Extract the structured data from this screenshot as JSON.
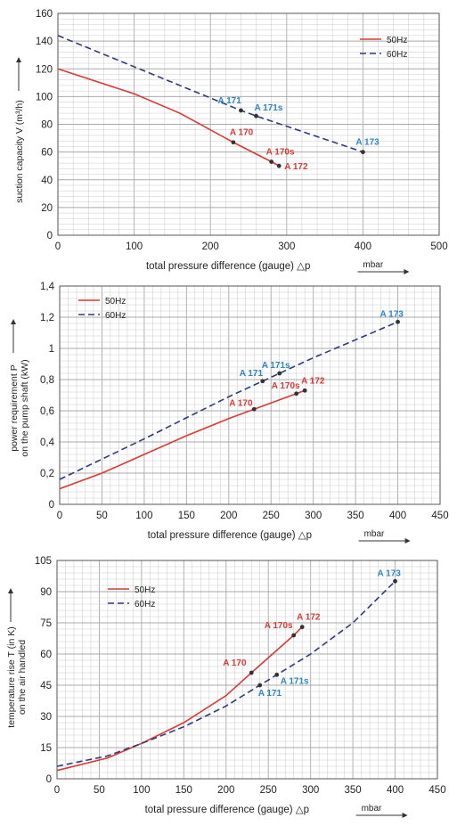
{
  "colors": {
    "50Hz": "#d83a34",
    "60Hz": "#2e3a82",
    "label_60Hz": "#2a86c7",
    "grid": "#c9c9c9"
  },
  "chart_data": [
    {
      "type": "line",
      "xlabel": "total pressure difference (gauge) △p",
      "xunit": "mbar",
      "ylabel": "suction capacity V (m³/h)",
      "xlim": [
        0,
        500
      ],
      "ylim": [
        0,
        160
      ],
      "xticks": [
        0,
        100,
        200,
        300,
        400,
        500
      ],
      "yticks": [
        0,
        20,
        40,
        60,
        80,
        100,
        120,
        140,
        160
      ],
      "legend_position": "top-right",
      "series": [
        {
          "name": "50Hz",
          "style": "solid",
          "x": [
            0,
            100,
            160,
            230,
            280,
            290
          ],
          "y": [
            120,
            102,
            88,
            67,
            53,
            50
          ]
        },
        {
          "name": "60Hz",
          "style": "dashed",
          "x": [
            0,
            240,
            260,
            400
          ],
          "y": [
            144,
            90,
            86,
            60
          ]
        }
      ],
      "markers": [
        {
          "label": "A 170",
          "x": 230,
          "y": 67,
          "series": "50Hz"
        },
        {
          "label": "A 170s",
          "x": 280,
          "y": 53,
          "series": "50Hz"
        },
        {
          "label": "A 172",
          "x": 290,
          "y": 50,
          "series": "50Hz"
        },
        {
          "label": "A 171",
          "x": 240,
          "y": 90,
          "series": "60Hz"
        },
        {
          "label": "A 171s",
          "x": 260,
          "y": 86,
          "series": "60Hz"
        },
        {
          "label": "A 173",
          "x": 400,
          "y": 60,
          "series": "60Hz"
        }
      ]
    },
    {
      "type": "line",
      "xlabel": "total pressure difference (gauge) △p",
      "xunit": "mbar",
      "ylabel": "power requirement P on the pump shaft (kW)",
      "xlim": [
        0,
        450
      ],
      "ylim": [
        0,
        1.4
      ],
      "xticks": [
        0,
        50,
        100,
        150,
        200,
        250,
        300,
        350,
        400,
        450
      ],
      "yticks": [
        0,
        0.2,
        0.4,
        0.6,
        0.8,
        1,
        1.2,
        1.4
      ],
      "ytick_labels": [
        "0",
        "0,2",
        "0,4",
        "0,6",
        "0,8",
        "1",
        "1,2",
        "1,4"
      ],
      "legend_position": "top-left",
      "series": [
        {
          "name": "50Hz",
          "style": "solid",
          "x": [
            0,
            50,
            100,
            150,
            200,
            230,
            280,
            290
          ],
          "y": [
            0.1,
            0.2,
            0.32,
            0.44,
            0.55,
            0.61,
            0.71,
            0.73
          ]
        },
        {
          "name": "60Hz",
          "style": "dashed",
          "x": [
            0,
            100,
            200,
            240,
            260,
            300,
            400
          ],
          "y": [
            0.16,
            0.42,
            0.69,
            0.79,
            0.84,
            0.94,
            1.17
          ]
        }
      ],
      "markers": [
        {
          "label": "A 170",
          "x": 230,
          "y": 0.61,
          "series": "50Hz"
        },
        {
          "label": "A 170s",
          "x": 280,
          "y": 0.71,
          "series": "50Hz"
        },
        {
          "label": "A 172",
          "x": 290,
          "y": 0.73,
          "series": "50Hz"
        },
        {
          "label": "A 171",
          "x": 240,
          "y": 0.79,
          "series": "60Hz"
        },
        {
          "label": "A 171s",
          "x": 260,
          "y": 0.84,
          "series": "60Hz"
        },
        {
          "label": "A 173",
          "x": 400,
          "y": 1.17,
          "series": "60Hz"
        }
      ]
    },
    {
      "type": "line",
      "xlabel": "total pressure difference (gauge) △p",
      "xunit": "mbar",
      "ylabel": "temperature rise T (in K) on the air handled",
      "xlim": [
        0,
        450
      ],
      "ylim": [
        0,
        105
      ],
      "xticks": [
        0,
        50,
        100,
        150,
        200,
        250,
        300,
        350,
        400,
        450
      ],
      "yticks": [
        0,
        15,
        30,
        45,
        60,
        75,
        90,
        105
      ],
      "legend_position": "top-left",
      "series": [
        {
          "name": "50Hz",
          "style": "solid",
          "x": [
            0,
            60,
            100,
            150,
            200,
            230,
            280,
            290
          ],
          "y": [
            4,
            10,
            17,
            27,
            40,
            51,
            69,
            73
          ]
        },
        {
          "name": "60Hz",
          "style": "dashed",
          "x": [
            0,
            60,
            100,
            150,
            200,
            240,
            260,
            300,
            350,
            400
          ],
          "y": [
            6,
            11,
            17,
            25,
            35,
            45,
            50,
            60,
            75,
            95
          ]
        }
      ],
      "markers": [
        {
          "label": "A 170",
          "x": 230,
          "y": 51,
          "series": "50Hz"
        },
        {
          "label": "A 170s",
          "x": 280,
          "y": 69,
          "series": "50Hz"
        },
        {
          "label": "A 172",
          "x": 290,
          "y": 73,
          "series": "50Hz"
        },
        {
          "label": "A 171",
          "x": 240,
          "y": 45,
          "series": "60Hz"
        },
        {
          "label": "A 171s",
          "x": 260,
          "y": 50,
          "series": "60Hz"
        },
        {
          "label": "A 173",
          "x": 400,
          "y": 95,
          "series": "60Hz"
        }
      ]
    }
  ]
}
